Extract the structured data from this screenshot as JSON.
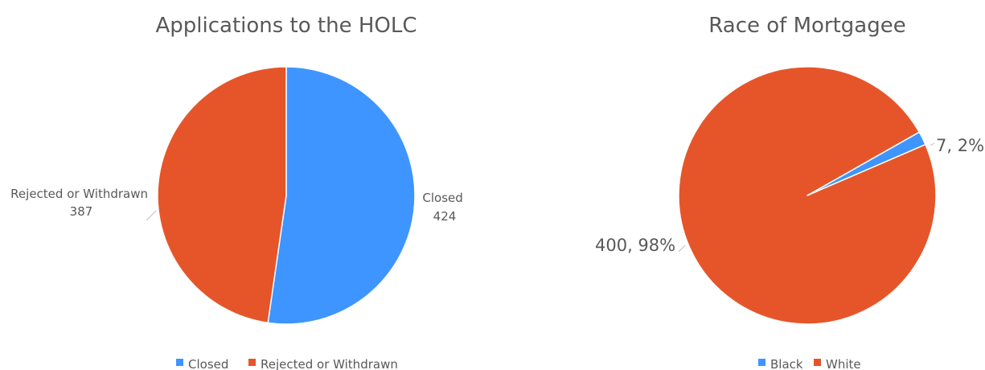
{
  "chart_data": [
    {
      "type": "pie",
      "title": "Applications to the HOLC",
      "categories": [
        "Closed",
        "Rejected or Withdrawn"
      ],
      "values": [
        424,
        387
      ],
      "colors": [
        "#3e95ff",
        "#e6552a"
      ],
      "data_labels": [
        {
          "lines": [
            "Closed",
            "424"
          ]
        },
        {
          "lines": [
            "Rejected or Withdrawn",
            "387"
          ]
        }
      ],
      "legend": {
        "position": "bottom",
        "entries": [
          "Closed",
          "Rejected or Withdrawn"
        ]
      }
    },
    {
      "type": "pie",
      "title": "Race of Mortgagee",
      "categories": [
        "Black",
        "White"
      ],
      "values": [
        7,
        400
      ],
      "percentages": [
        "2%",
        "98%"
      ],
      "colors": [
        "#3e95ff",
        "#e6552a"
      ],
      "data_labels": [
        {
          "lines": [
            "7, 2%"
          ]
        },
        {
          "lines": [
            "400, 98%"
          ]
        }
      ],
      "legend": {
        "position": "bottom",
        "entries": [
          "Black",
          "White"
        ]
      }
    }
  ]
}
